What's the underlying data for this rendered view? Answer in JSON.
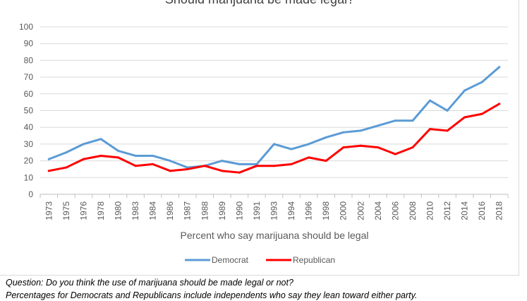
{
  "chart_data": {
    "type": "line",
    "title": "Should marijuana be made legal?",
    "xlabel": "Percent who say marijuana should be legal",
    "ylabel": "",
    "ylim": [
      0,
      100
    ],
    "yticks": [
      0,
      10,
      20,
      30,
      40,
      50,
      60,
      70,
      80,
      90,
      100
    ],
    "grid": true,
    "legend_position": "bottom",
    "categories": [
      "1973",
      "1975",
      "1976",
      "1978",
      "1980",
      "1983",
      "1984",
      "1986",
      "1987",
      "1988",
      "1989",
      "1990",
      "1991",
      "1993",
      "1994",
      "1996",
      "1998",
      "2000",
      "2002",
      "2004",
      "2006",
      "2008",
      "2010",
      "2012",
      "2014",
      "2016",
      "2018"
    ],
    "series": [
      {
        "name": "Democrat",
        "color": "#5b9bd5",
        "values": [
          21,
          25,
          30,
          33,
          26,
          23,
          23,
          20,
          16,
          17,
          20,
          18,
          18,
          30,
          27,
          30,
          34,
          37,
          38,
          41,
          44,
          44,
          56,
          50,
          62,
          67,
          76
        ]
      },
      {
        "name": "Republican",
        "color": "#ff0000",
        "values": [
          14,
          16,
          21,
          23,
          22,
          17,
          18,
          14,
          15,
          17,
          14,
          13,
          17,
          17,
          18,
          22,
          20,
          28,
          29,
          28,
          24,
          28,
          39,
          38,
          46,
          48,
          54
        ]
      }
    ]
  },
  "notes": {
    "question": "Question: Do you think the use of marijuana should be made legal or not?",
    "definition": "Percentages for Democrats and Republicans include independents who say they lean toward either party."
  }
}
